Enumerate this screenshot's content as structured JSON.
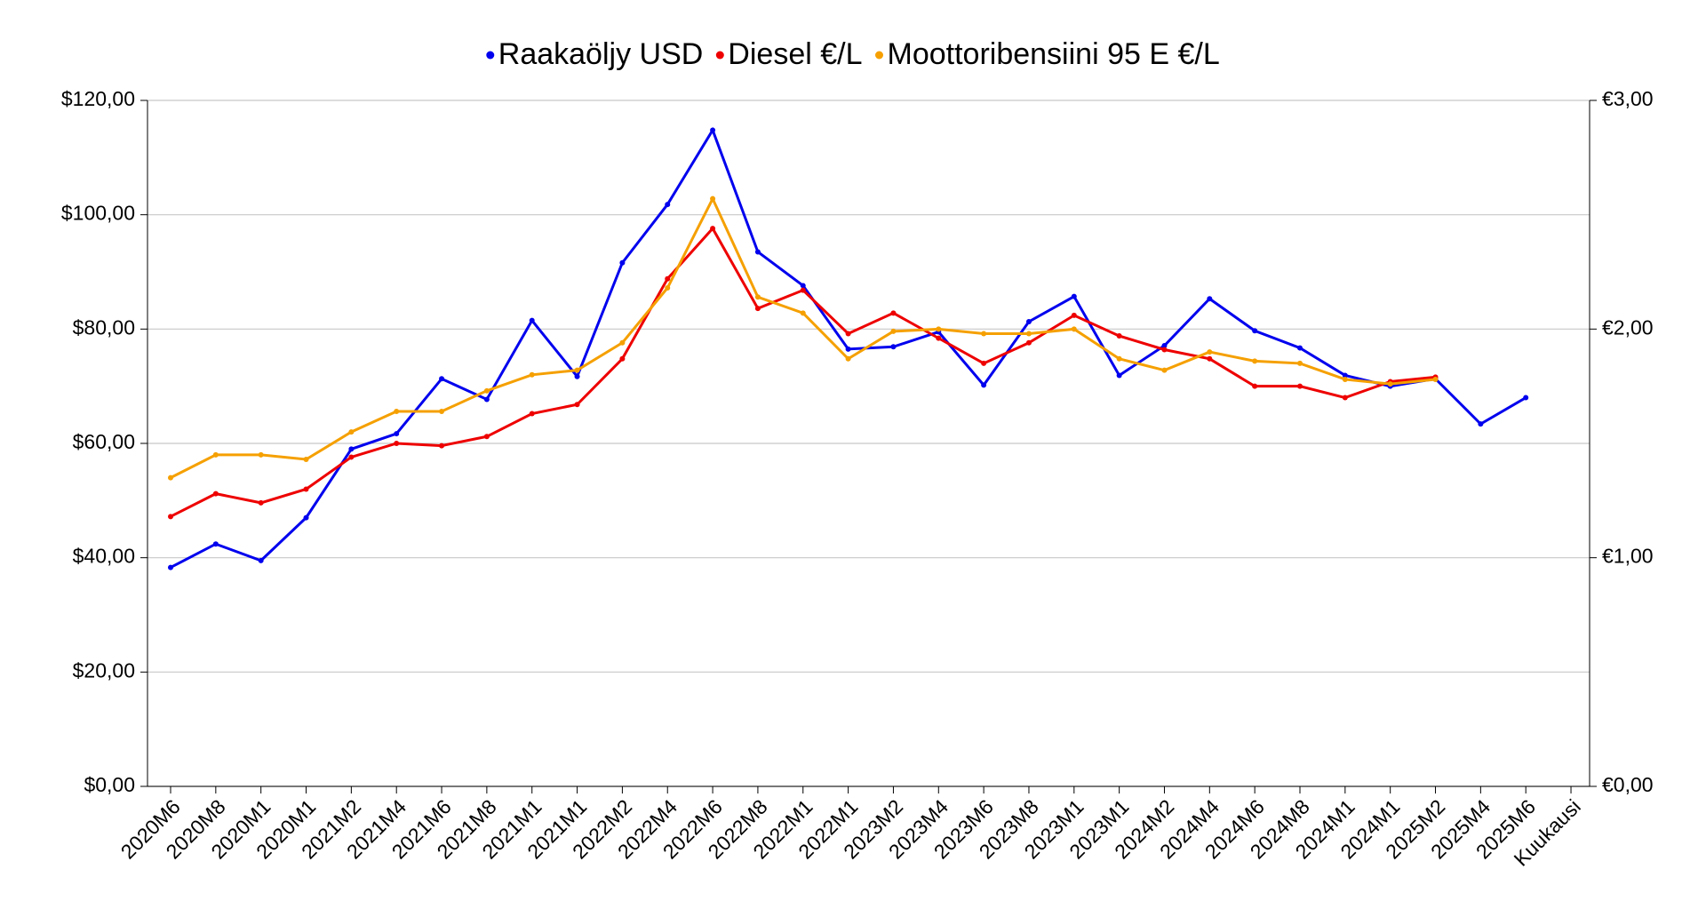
{
  "chart_data": {
    "type": "line",
    "categories": [
      "2020M6",
      "2020M8",
      "2020M1",
      "2020M1",
      "2021M2",
      "2021M4",
      "2021M6",
      "2021M8",
      "2021M1",
      "2021M1",
      "2022M2",
      "2022M4",
      "2022M6",
      "2022M8",
      "2022M1",
      "2022M1",
      "2023M2",
      "2023M4",
      "2023M6",
      "2023M8",
      "2023M1",
      "2023M1",
      "2024M2",
      "2024M4",
      "2024M6",
      "2024M8",
      "2024M1",
      "2024M1",
      "2025M2",
      "2025M4",
      "2025M6"
    ],
    "xlabel": "Kuukausi",
    "series": [
      {
        "name": "Raakaöljy USD",
        "color": "#0000ee",
        "values": [
          38.3,
          42.4,
          39.5,
          47.0,
          59.0,
          61.7,
          71.3,
          67.7,
          81.5,
          71.7,
          91.6,
          101.8,
          114.8,
          93.5,
          87.6,
          76.5,
          76.9,
          79.5,
          70.2,
          81.3,
          85.7,
          71.9,
          77.1,
          85.3,
          79.7,
          76.7,
          71.9,
          70.0,
          71.3,
          63.4,
          68.0
        ]
      },
      {
        "name": "Diesel €/L",
        "color": "#ee0000",
        "axis": "y2",
        "values": [
          1.18,
          1.28,
          1.24,
          1.3,
          1.44,
          1.5,
          1.49,
          1.53,
          1.63,
          1.67,
          1.87,
          2.22,
          2.44,
          2.09,
          2.17,
          1.98,
          2.07,
          1.96,
          1.85,
          1.94,
          2.06,
          1.97,
          1.91,
          1.87,
          1.75,
          1.75,
          1.7,
          1.77,
          1.79,
          null,
          null
        ]
      },
      {
        "name": "Moottoribensiini 95 E €/L",
        "color": "#f5a000",
        "axis": "y2",
        "values": [
          1.35,
          1.45,
          1.45,
          1.43,
          1.55,
          1.64,
          1.64,
          1.73,
          1.8,
          1.82,
          1.94,
          2.18,
          2.57,
          2.14,
          2.07,
          1.87,
          1.99,
          2.0,
          1.98,
          1.98,
          2.0,
          1.87,
          1.82,
          1.9,
          1.86,
          1.85,
          1.78,
          1.76,
          1.78,
          null,
          null
        ]
      }
    ],
    "ylim": [
      0,
      120
    ],
    "yticks": [
      {
        "value": 0,
        "label": "$0,00"
      },
      {
        "value": 20,
        "label": "$20,00"
      },
      {
        "value": 40,
        "label": "$40,00"
      },
      {
        "value": 60,
        "label": "$60,00"
      },
      {
        "value": 80,
        "label": "$80,00"
      },
      {
        "value": 100,
        "label": "$100,00"
      },
      {
        "value": 120,
        "label": "$120,00"
      }
    ],
    "y2lim": [
      0,
      3
    ],
    "y2ticks": [
      {
        "value": 0,
        "label": "€0,00"
      },
      {
        "value": 1,
        "label": "€1,00"
      },
      {
        "value": 2,
        "label": "€2,00"
      },
      {
        "value": 3,
        "label": "€3,00"
      }
    ],
    "grid": true
  }
}
